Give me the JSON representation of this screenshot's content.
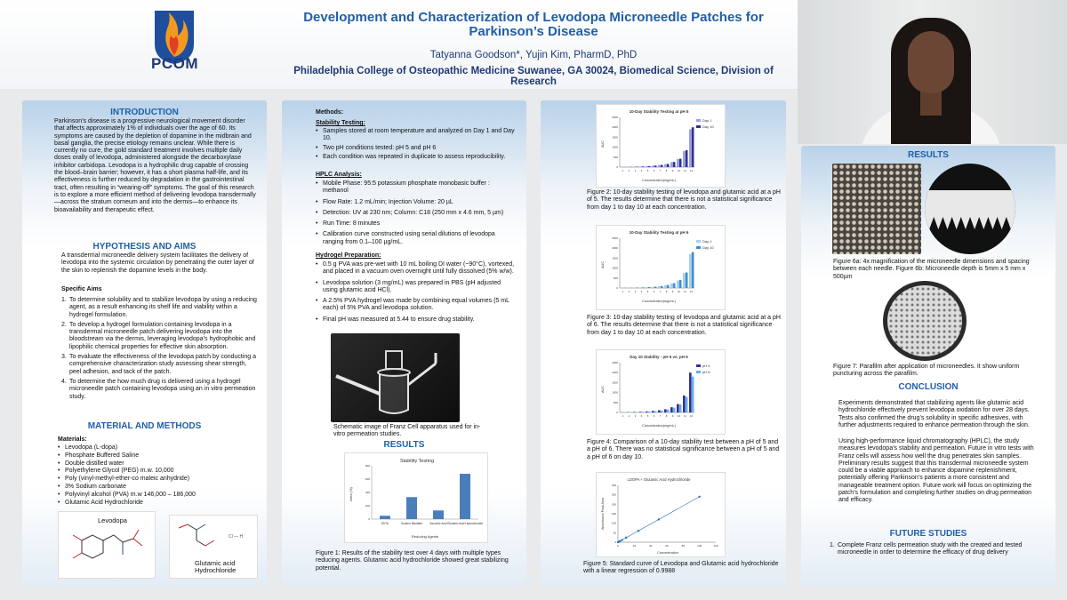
{
  "header": {
    "logo_text": "PCOM",
    "title": "Development and Characterization of Levodopa Microneedle Patches for Parkinson’s Disease",
    "authors": "Tatyanna Goodson*, Yujin Kim, PharmD, PhD",
    "affiliation": "Philadelphia College of Osteopathic Medicine Suwanee, GA 30024, Biomedical Science, Division of Research"
  },
  "intro": {
    "heading": "INTRODUCTION",
    "text": "Parkinson’s disease is a progressive neurological movement disorder that affects approximately 1% of individuals over the age of 60. Its symptoms are caused by the depletion of dopamine in the midbrain and basal ganglia, the precise etiology remains unclear. While there is currently no cure, the gold standard treatment involves multiple daily doses orally of levodopa, administered alongside the decarboxylase inhibitor carbidopa. Levodopa is a hydrophilic drug capable of crossing the blood–brain barrier; however, it has a short plasma half-life, and its effectiveness is further reduced by degradation in the gastrointestinal tract, often resulting in “wearing-off” symptoms. The goal of this research is to explore a more efficient method of delivering levodopa transdermally—across the stratum corneum and into the dermis—to enhance its bioavailability and therapeutic effect."
  },
  "hypothesis": {
    "heading": "HYPOTHESIS AND AIMS",
    "text": "A transdermal microneedle delivery system facilitates the delivery of levodopa into the systemic circulation by penetrating the outer layer of the skin to replenish the dopamine levels in the body.",
    "aims_label": "Specific Aims",
    "aims": [
      "To determine solubility and to stabilize levodopa by using a reducing agent, as a result enhancing its shelf life and viability within a hydrogel formulation.",
      "To develop a hydrogel formulation containing levodopa in a transdermal microneedle patch delivering levodopa into the bloodstream via the dermis, leveraging levodopa’s hydrophobic and lipophilic chemical properties for effective skin absorption.",
      "To evaluate the effectiveness of the levodopa patch by conducting a comprehensive characterization study assessing shear strength, peel adhesion, and tack of the patch.",
      "To determine the how much drug is delivered using a hydrogel microneedle patch containing levodopa using an in vitro permeation study."
    ]
  },
  "materials": {
    "heading": "MATERIAL AND METHODS",
    "label": "Materials:",
    "items": [
      "Levodopa (L-dopa)",
      "Phosphate Buffered Saline",
      "Double distilled water",
      "Polyethylene Glycol (PEG) m.w. 10,000",
      "Poly (vinyl-methyl-ether-co maleic anhydride)",
      "3% Sodium carbonate",
      "Polyvinyl alcohol (PVA) m.w 146,000 – 186,000",
      "Glutamic Acid Hydrochloride"
    ],
    "levodopa_label": "Levodopa",
    "glutamic_label": "Glutamic acid Hydrochloride",
    "hcl_label": "Cl — H"
  },
  "methods": {
    "label": "Methods:",
    "stability_label": "Stability Testing:",
    "stability": [
      "Samples stored at room temperature and analyzed on Day 1 and Day 10.",
      "Two pH conditions tested: pH 5 and pH 6",
      "Each condition was repeated in duplicate to assess reproducibility."
    ],
    "hplc_label": "HPLC Analysis:",
    "hplc": [
      "Mobile Phase: 95:5 potassium phosphate monobasic buffer : methanol",
      "Flow Rate: 1.2 mL/min; Injection Volume: 20 µL",
      "Detection: UV at 230 nm; Column: C18 (250 mm x 4.6 mm, 5 µm)",
      "Run Time: 8 minutes",
      "Calibration curve constructed using serial dilutions of levodopa ranging from 0.1–100 µg/mL."
    ],
    "hydrogel_label": "Hydrogel Preparation:",
    "hydrogel": [
      "0.5 g PVA was pre-wet with 10 mL boiling DI water (~90°C), vortexed, and placed in a vacuum oven overnight until fully dissolved (5% w/w).",
      "Levodopa solution (3 mg/mL) was prepared in PBS (pH adjusted using glutamic acid HCl).",
      "A 2.5% PVA hydrogel was made by combining equal volumes (5 mL each) of 5% PVA and levodopa solution.",
      "Final pH was measured at 5.44 to ensure drug stability."
    ],
    "franz_caption": "Schematic image of Franz Cell apparatus used for in-vitro permeation studies."
  },
  "results_mid": {
    "heading": "RESULTS",
    "fig1_caption": "Figure 1: Results of the stability test over 4 days with multiple types reducing agents. Glutamic acid hydrochloride showed great stabilizing potential."
  },
  "col3": {
    "fig2_caption": "Figure 2: 10-day stability testing of levodopa and glutamic acid at a pH of 5. The results determine that there is not a statistical significance from day 1 to day 10 at each concentration.",
    "fig3_caption": "Figure 3: 10-day stability testing of levodopa and glutamic acid at a pH of 6. The results determine that there is not a statistical significance from day 1 to day 10 at each concentration.",
    "fig4_caption": "Figure 4: Comparison of a 10-day stability test between a pH of 5 and a pH of 6. There was no statistical significance between a pH of 5 and a pH of 6 on day 10.",
    "fig5_caption": "Figure 5: Standard curve of Levodopa and Glutamic acid hydrochloride with a linear regression of 0.9988"
  },
  "results_right": {
    "heading": "RESULTS",
    "fig6_caption": "Figure 6a: 4x magnification of the microneedle dimensions and spacing between each needle. Figure 6b: Microneedle depth is 5mm x 5 mm x 500µm",
    "fig7_caption": "Figure 7: Parafilm after application of microneedles. It show uniform puncturing across the parafilm."
  },
  "conclusion": {
    "heading": "CONCLUSION",
    "p1": "Experiments demonstrated that stabilizing agents like glutamic acid hydrochloride effectively prevent levodopa oxidation for over 28 days. Tests also confirmed the drug’s solubility in specific adhesives, with further adjustments required to enhance permeation through the skin.",
    "p2": "Using high-performance liquid chromatography (HPLC), the study measures levodopa’s stability and permeation. Future in vitro tests with Franz cells will assess how well the drug penetrates skin samples. Preliminary results suggest that this transdermal microneedle system could be a viable approach to enhance dopamine replenishment, potentially offering Parkinson’s patients a more consistent and manageable treatment option. Future work will focus on optimizing the patch’s formulation and completing further studies on drug permeation and efficacy."
  },
  "future": {
    "heading": "FUTURE STUDIES",
    "items": [
      "Complete Franz cells permeation study with the created and tested  microneedle in order to determine the efficacy of drug delivery"
    ]
  },
  "chart_data": [
    {
      "type": "bar",
      "title": "Stability Testing",
      "xlabel": "Reducing Agents",
      "ylabel": "Area (%)",
      "categories": [
        "EDTA",
        "Sodium Bisulfate",
        "Ascorbic Acid",
        "Glutamic Acid Hydrochloride"
      ],
      "values": [
        50,
        330,
        130,
        680
      ],
      "ylim": [
        0,
        800
      ],
      "color": "#4a7ebb"
    },
    {
      "type": "bar",
      "title": "10-Day Stability Testing at pH 5",
      "xlabel": "Concentration(mg/mL)",
      "ylabel": "AUC",
      "ylim": [
        0,
        2500
      ],
      "categories": [
        "1",
        "2",
        "3",
        "4",
        "5",
        "6",
        "7",
        "8",
        "9",
        "10",
        "11",
        "12"
      ],
      "series": [
        {
          "name": "Day 1",
          "values": [
            5,
            10,
            20,
            30,
            45,
            70,
            100,
            150,
            250,
            400,
            800,
            1900
          ],
          "color": "#9aa0e8"
        },
        {
          "name": "Day 10",
          "values": [
            5,
            12,
            22,
            32,
            50,
            75,
            110,
            160,
            260,
            420,
            850,
            2000
          ],
          "color": "#2e3192"
        }
      ],
      "legend": "top-right"
    },
    {
      "type": "bar",
      "title": "10-Day Stability Testing at pH 6",
      "xlabel": "Concentration(mg/mL)",
      "ylabel": "AUC",
      "ylim": [
        0,
        2500
      ],
      "categories": [
        "1",
        "2",
        "3",
        "4",
        "5",
        "6",
        "7",
        "8",
        "9",
        "10",
        "11",
        "12"
      ],
      "series": [
        {
          "name": "Day 1",
          "values": [
            5,
            10,
            18,
            28,
            40,
            60,
            90,
            140,
            230,
            380,
            750,
            1700
          ],
          "color": "#a9cdeb"
        },
        {
          "name": "Day 10",
          "values": [
            5,
            11,
            20,
            30,
            44,
            65,
            95,
            150,
            240,
            400,
            780,
            1800
          ],
          "color": "#3d8fd1"
        }
      ],
      "legend": "top-right"
    },
    {
      "type": "bar",
      "title": "Day 10 Stability - pH 5 vs. pH 6",
      "xlabel": "Concentration(mg/mL)",
      "ylabel": "AUC",
      "ylim": [
        0,
        2500
      ],
      "categories": [
        "1",
        "2",
        "3",
        "4",
        "5",
        "6",
        "7",
        "8",
        "9",
        "10",
        "11",
        "12"
      ],
      "series": [
        {
          "name": "pH 5",
          "values": [
            5,
            12,
            22,
            32,
            50,
            75,
            110,
            160,
            260,
            420,
            850,
            2000
          ],
          "color": "#2e3192"
        },
        {
          "name": "pH 6",
          "values": [
            5,
            11,
            20,
            30,
            44,
            65,
            95,
            150,
            240,
            400,
            780,
            1800
          ],
          "color": "#6aaef0"
        }
      ],
      "legend": "top-right"
    },
    {
      "type": "scatter",
      "title": "LDOPA + Glutamic Acid Hydrochloride",
      "xlabel": "Concentration",
      "ylabel": "Absorbance Peak Area",
      "x": [
        0,
        1,
        2.5,
        5,
        10,
        25,
        50,
        100
      ],
      "y": [
        0,
        2,
        6,
        12,
        24,
        60,
        120,
        240
      ],
      "xlim": [
        0,
        120
      ],
      "ylim": [
        0,
        300
      ],
      "trendline": true,
      "color": "#2f6fb5"
    }
  ]
}
